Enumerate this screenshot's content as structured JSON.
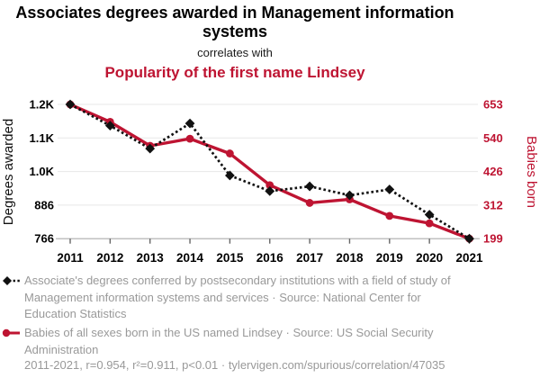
{
  "header": {
    "title": "Associates degrees awarded in Management information systems",
    "connector": "correlates with",
    "subtitle": "Popularity of the first name Lindsey"
  },
  "chart_data": {
    "type": "line",
    "x": [
      2011,
      2012,
      2013,
      2014,
      2015,
      2016,
      2017,
      2018,
      2019,
      2020,
      2021
    ],
    "series": [
      {
        "name": "Degrees awarded",
        "axis": "left",
        "color": "#111111",
        "line_style": "dotted",
        "marker": "diamond",
        "values": [
          1246,
          1170,
          1088,
          1178,
          992,
          936,
          953,
          921,
          942,
          852,
          766
        ]
      },
      {
        "name": "Babies born",
        "axis": "right",
        "color": "#BE1432",
        "line_style": "solid",
        "marker": "circle",
        "values": [
          653,
          594,
          513,
          537,
          487,
          380,
          320,
          332,
          276,
          251,
          199
        ]
      }
    ],
    "left_axis": {
      "label": "Degrees awarded",
      "tick_labels": [
        "1.2K",
        "1.1K",
        "1.0K",
        "886",
        "766"
      ],
      "min": 766,
      "max": 1246
    },
    "right_axis": {
      "label": "Babies born",
      "tick_labels": [
        "653",
        "540",
        "426",
        "312",
        "199"
      ],
      "min": 199,
      "max": 653
    },
    "grid": true,
    "legend_position": "bottom"
  },
  "legend": [
    {
      "marker": "black-diamond-dotted-line",
      "text": "Associate's degrees conferred by postsecondary institutions with a field of study of Management information systems and services · Source: National Center for Education Statistics"
    },
    {
      "marker": "red-circle-solid-line",
      "text": "Babies of all sexes born in the US named Lindsey · Source: US Social Security Administration"
    }
  ],
  "footer": {
    "text": "2011-2021, r=0.954, r²=0.911, p<0.01 · tylervigen.com/spurious/correlation/47035"
  },
  "colors": {
    "red": "#BE1432",
    "black": "#111111",
    "gray_text": "#999999",
    "grid": "#e7e7e7",
    "axis_line": "#b0b0b0",
    "tick_mark": "#666666"
  }
}
